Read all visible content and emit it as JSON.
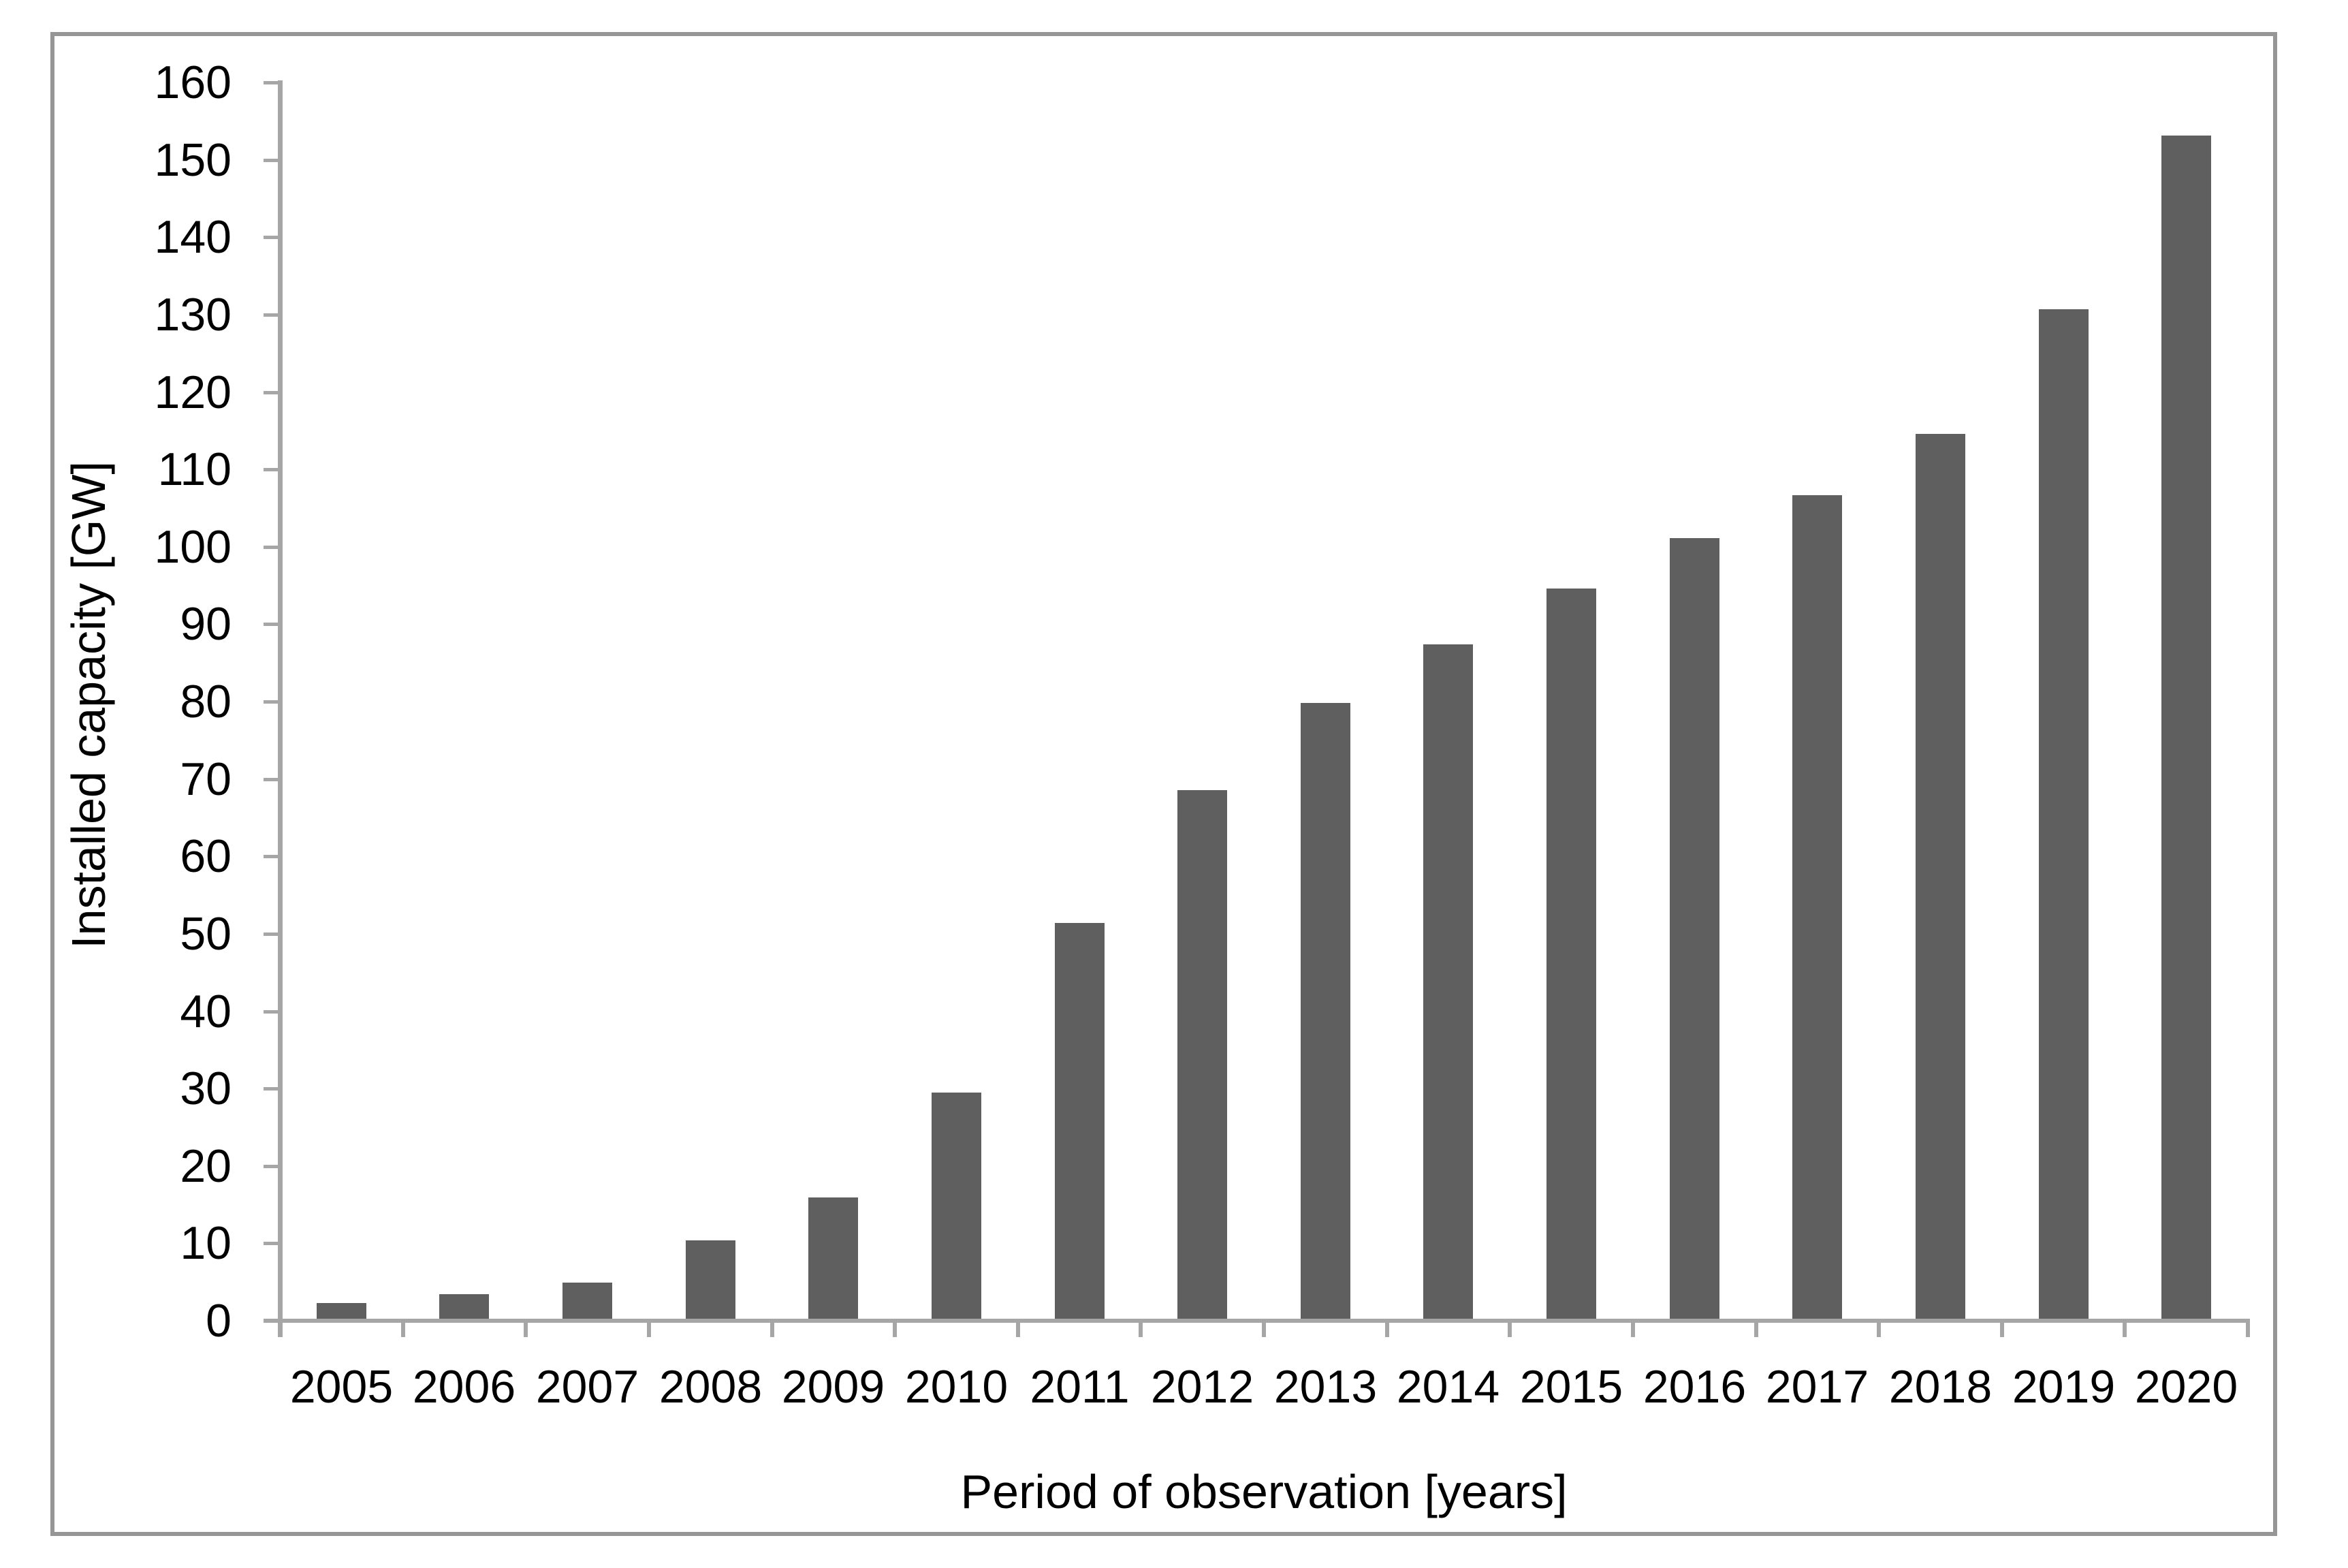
{
  "figure": {
    "background_color": "#ffffff",
    "border_color": "#969696"
  },
  "chart_data": {
    "type": "bar",
    "title": "",
    "xlabel": "Period of observation [years]",
    "ylabel": "Installed capacity [GW]",
    "categories": [
      "2005",
      "2006",
      "2007",
      "2008",
      "2009",
      "2010",
      "2011",
      "2012",
      "2013",
      "2014",
      "2015",
      "2016",
      "2017",
      "2018",
      "2019",
      "2020"
    ],
    "values": [
      2.3,
      3.4,
      4.9,
      10.4,
      15.9,
      29.5,
      51.4,
      68.6,
      79.8,
      87.4,
      94.6,
      101.1,
      106.7,
      114.6,
      130.7,
      153.1
    ],
    "yticks": [
      0,
      10,
      20,
      30,
      40,
      50,
      60,
      70,
      80,
      90,
      100,
      110,
      120,
      130,
      140,
      150,
      160
    ],
    "ylim": [
      0,
      160
    ],
    "grid": false,
    "legend": null,
    "bar_color": "#5f5f5f",
    "axis_color": "#a6a6a6",
    "text_color": "#000000"
  }
}
